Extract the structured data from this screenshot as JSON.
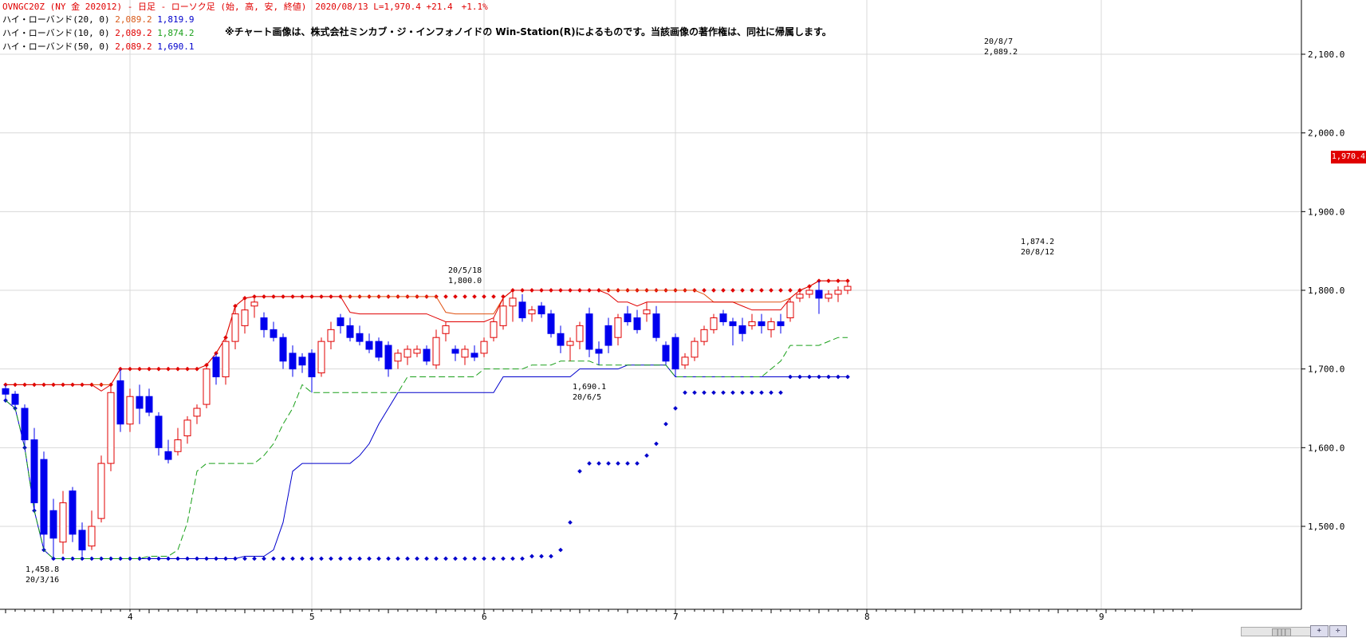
{
  "header": {
    "line1": "OVNGC20Z (NY 金 202012) - 日足 - ローソク足 (始, 高, 安, 終値)　2020/08/13 L=1,970.4 +21.4　+1.1%",
    "band20_label": "ハイ・ローバンド(20, 0)",
    "band20_high": "2,089.2",
    "band20_low": "1,819.9",
    "band10_label": "ハイ・ローバンド(10, 0)",
    "band10_high": "2,089.2",
    "band10_low": "1,874.2",
    "band50_label": "ハイ・ローバンド(50, 0)",
    "band50_high": "2,089.2",
    "band50_low": "1,690.1"
  },
  "copyright": "※チャート画像は、株式会社ミンカブ・ジ・インフォノイドの Win-Station(R)によるものです。当該画像の著作権は、同社に帰属します。",
  "last_price_tag": "1,970.4",
  "scroll_thumb": "|||",
  "colors": {
    "up": "#e00000",
    "down": "#0000ee",
    "band50_high": "#e00000",
    "band50_low": "#0000cc",
    "band20_high": "#e05010",
    "band20_low": "#0000cc",
    "band10_high": "#e00000",
    "band10_low": "#1aa01a",
    "grid": "#d8d8d8"
  },
  "chart_data": {
    "type": "candlestick",
    "y_axis": {
      "ylim": [
        1400,
        2150
      ],
      "ticks": [
        1500,
        1600,
        1700,
        1800,
        1900,
        2000,
        2100
      ],
      "tick_labels": [
        "1,500.0",
        "1,600.0",
        "1,700.0",
        "1,800.0",
        "1,900.0",
        "2,000.0",
        "2,100.0"
      ]
    },
    "x_axis": {
      "month_labels": [
        {
          "label": "4",
          "idx": 13
        },
        {
          "label": "5",
          "idx": 32
        },
        {
          "label": "6",
          "idx": 50
        },
        {
          "label": "7",
          "idx": 70
        },
        {
          "label": "8",
          "idx": 90
        },
        {
          "label": "9",
          "idx": 114.5
        }
      ],
      "bars_visible": 100
    },
    "candles": [
      [
        1675,
        1680,
        1660,
        1668
      ],
      [
        1668,
        1672,
        1650,
        1655
      ],
      [
        1650,
        1655,
        1600,
        1610
      ],
      [
        1610,
        1625,
        1520,
        1530
      ],
      [
        1585,
        1595,
        1470,
        1490
      ],
      [
        1520,
        1535,
        1459,
        1485
      ],
      [
        1480,
        1545,
        1465,
        1530
      ],
      [
        1545,
        1550,
        1480,
        1490
      ],
      [
        1495,
        1505,
        1462,
        1470
      ],
      [
        1475,
        1520,
        1470,
        1500
      ],
      [
        1510,
        1590,
        1505,
        1580
      ],
      [
        1580,
        1680,
        1570,
        1670
      ],
      [
        1685,
        1700,
        1620,
        1630
      ],
      [
        1630,
        1675,
        1620,
        1665
      ],
      [
        1665,
        1680,
        1630,
        1650
      ],
      [
        1665,
        1675,
        1640,
        1645
      ],
      [
        1640,
        1645,
        1590,
        1600
      ],
      [
        1595,
        1610,
        1580,
        1585
      ],
      [
        1595,
        1625,
        1590,
        1610
      ],
      [
        1615,
        1640,
        1605,
        1635
      ],
      [
        1640,
        1655,
        1630,
        1650
      ],
      [
        1655,
        1705,
        1650,
        1700
      ],
      [
        1715,
        1720,
        1680,
        1690
      ],
      [
        1690,
        1740,
        1680,
        1735
      ],
      [
        1735,
        1780,
        1725,
        1770
      ],
      [
        1755,
        1790,
        1745,
        1775
      ],
      [
        1780,
        1792,
        1765,
        1785
      ],
      [
        1765,
        1772,
        1740,
        1750
      ],
      [
        1750,
        1760,
        1735,
        1740
      ],
      [
        1740,
        1745,
        1700,
        1710
      ],
      [
        1720,
        1730,
        1690,
        1700
      ],
      [
        1715,
        1720,
        1695,
        1705
      ],
      [
        1720,
        1725,
        1670,
        1690
      ],
      [
        1695,
        1740,
        1690,
        1735
      ],
      [
        1735,
        1760,
        1725,
        1750
      ],
      [
        1765,
        1770,
        1745,
        1755
      ],
      [
        1755,
        1765,
        1735,
        1740
      ],
      [
        1745,
        1755,
        1730,
        1735
      ],
      [
        1735,
        1745,
        1720,
        1725
      ],
      [
        1735,
        1740,
        1710,
        1715
      ],
      [
        1730,
        1735,
        1690,
        1700
      ],
      [
        1710,
        1725,
        1700,
        1720
      ],
      [
        1715,
        1730,
        1705,
        1725
      ],
      [
        1720,
        1730,
        1715,
        1725
      ],
      [
        1725,
        1730,
        1705,
        1710
      ],
      [
        1705,
        1750,
        1700,
        1740
      ],
      [
        1745,
        1760,
        1735,
        1755
      ],
      [
        1725,
        1730,
        1710,
        1720
      ],
      [
        1715,
        1730,
        1705,
        1725
      ],
      [
        1720,
        1730,
        1710,
        1715
      ],
      [
        1720,
        1740,
        1715,
        1735
      ],
      [
        1740,
        1765,
        1735,
        1760
      ],
      [
        1755,
        1790,
        1750,
        1780
      ],
      [
        1780,
        1800,
        1760,
        1790
      ],
      [
        1785,
        1795,
        1760,
        1765
      ],
      [
        1770,
        1780,
        1760,
        1775
      ],
      [
        1780,
        1785,
        1765,
        1770
      ],
      [
        1770,
        1775,
        1740,
        1745
      ],
      [
        1745,
        1755,
        1720,
        1730
      ],
      [
        1730,
        1740,
        1710,
        1735
      ],
      [
        1735,
        1760,
        1725,
        1755
      ],
      [
        1770,
        1778,
        1715,
        1725
      ],
      [
        1725,
        1735,
        1705,
        1720
      ],
      [
        1755,
        1765,
        1720,
        1730
      ],
      [
        1740,
        1770,
        1730,
        1765
      ],
      [
        1770,
        1780,
        1755,
        1760
      ],
      [
        1765,
        1775,
        1745,
        1750
      ],
      [
        1770,
        1785,
        1760,
        1775
      ],
      [
        1770,
        1780,
        1735,
        1740
      ],
      [
        1730,
        1735,
        1705,
        1710
      ],
      [
        1740,
        1745,
        1690,
        1700
      ],
      [
        1705,
        1720,
        1700,
        1715
      ],
      [
        1715,
        1740,
        1710,
        1735
      ],
      [
        1735,
        1755,
        1730,
        1750
      ],
      [
        1750,
        1770,
        1745,
        1765
      ],
      [
        1770,
        1775,
        1755,
        1760
      ],
      [
        1760,
        1765,
        1730,
        1755
      ],
      [
        1755,
        1765,
        1735,
        1745
      ],
      [
        1755,
        1770,
        1750,
        1760
      ],
      [
        1760,
        1770,
        1745,
        1755
      ],
      [
        1750,
        1765,
        1740,
        1760
      ],
      [
        1760,
        1770,
        1745,
        1755
      ],
      [
        1765,
        1790,
        1760,
        1785
      ],
      [
        1790,
        1800,
        1785,
        1795
      ],
      [
        1795,
        1805,
        1790,
        1800
      ],
      [
        1800,
        1812,
        1770,
        1790
      ],
      [
        1790,
        1800,
        1785,
        1795
      ],
      [
        1795,
        1805,
        1785,
        1800
      ],
      [
        1800,
        1810,
        1795,
        1805
      ]
    ],
    "annotations": [
      {
        "text": "1,458.8",
        "date": "20/3/16"
      },
      {
        "text": "20/5/18",
        "value": "1,800.0"
      },
      {
        "text": "1,690.1",
        "date": "20/6/5"
      },
      {
        "text": "20/8/7",
        "value": "2,089.2"
      },
      {
        "text": "1,874.2",
        "date": "20/8/12"
      }
    ]
  }
}
